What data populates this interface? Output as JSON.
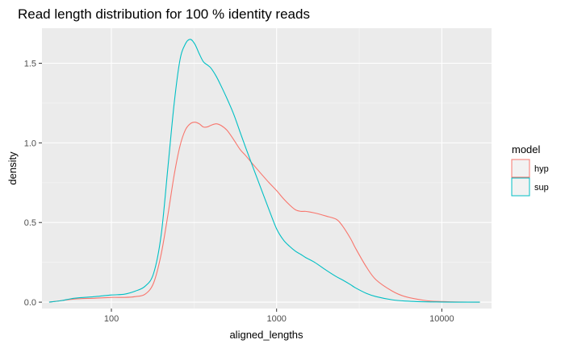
{
  "chart_data": {
    "type": "line",
    "title": "Read length distribution for 100 % identity reads",
    "xlabel": "aligned_lengths",
    "ylabel": "density",
    "x_scale": "log10",
    "xlim": [
      38,
      20000
    ],
    "ylim": [
      -0.04,
      1.72
    ],
    "x_ticks": [
      100,
      1000,
      10000
    ],
    "x_tick_labels": [
      "100",
      "1000",
      "10000"
    ],
    "x_minor_ticks": [
      316.2,
      3162.3
    ],
    "y_ticks": [
      0.0,
      0.5,
      1.0,
      1.5
    ],
    "y_tick_labels": [
      "0.0",
      "0.5",
      "1.0",
      "1.5"
    ],
    "y_minor_ticks": [
      0.25,
      0.75,
      1.25
    ],
    "grid": true,
    "legend": {
      "title": "model",
      "position": "right"
    },
    "series": [
      {
        "name": "hyp",
        "color": "#F8766D",
        "x": [
          42,
          50,
          60,
          80,
          100,
          120,
          140,
          160,
          180,
          200,
          220,
          240,
          260,
          280,
          300,
          320,
          340,
          360,
          380,
          400,
          430,
          460,
          500,
          550,
          600,
          650,
          700,
          800,
          900,
          1000,
          1100,
          1200,
          1300,
          1400,
          1500,
          1700,
          2000,
          2300,
          2500,
          2800,
          3000,
          3500,
          4000,
          5000,
          6000,
          8000,
          10000,
          13000,
          17000
        ],
        "y": [
          0.0,
          0.01,
          0.02,
          0.025,
          0.03,
          0.03,
          0.035,
          0.05,
          0.12,
          0.3,
          0.55,
          0.8,
          0.98,
          1.08,
          1.12,
          1.13,
          1.12,
          1.1,
          1.1,
          1.11,
          1.12,
          1.11,
          1.08,
          1.02,
          0.96,
          0.92,
          0.88,
          0.81,
          0.75,
          0.7,
          0.65,
          0.61,
          0.58,
          0.57,
          0.57,
          0.56,
          0.54,
          0.52,
          0.48,
          0.4,
          0.34,
          0.22,
          0.14,
          0.07,
          0.035,
          0.01,
          0.004,
          0.001,
          0.0
        ]
      },
      {
        "name": "sup",
        "color": "#00BFC4",
        "x": [
          42,
          50,
          60,
          80,
          100,
          120,
          140,
          160,
          180,
          200,
          220,
          240,
          260,
          280,
          300,
          320,
          340,
          360,
          380,
          400,
          430,
          460,
          500,
          550,
          600,
          650,
          700,
          800,
          900,
          1000,
          1100,
          1200,
          1300,
          1400,
          1500,
          1700,
          2000,
          2300,
          2500,
          2800,
          3000,
          3500,
          4000,
          5000,
          6000,
          8000,
          10000,
          13000,
          17000
        ],
        "y": [
          0.0,
          0.01,
          0.025,
          0.035,
          0.045,
          0.05,
          0.07,
          0.1,
          0.18,
          0.42,
          0.85,
          1.25,
          1.52,
          1.62,
          1.65,
          1.62,
          1.56,
          1.51,
          1.49,
          1.47,
          1.42,
          1.36,
          1.28,
          1.18,
          1.07,
          0.97,
          0.88,
          0.72,
          0.58,
          0.46,
          0.39,
          0.35,
          0.32,
          0.3,
          0.28,
          0.25,
          0.2,
          0.16,
          0.14,
          0.11,
          0.09,
          0.055,
          0.035,
          0.015,
          0.007,
          0.002,
          0.001,
          0.0,
          0.0
        ]
      }
    ]
  }
}
